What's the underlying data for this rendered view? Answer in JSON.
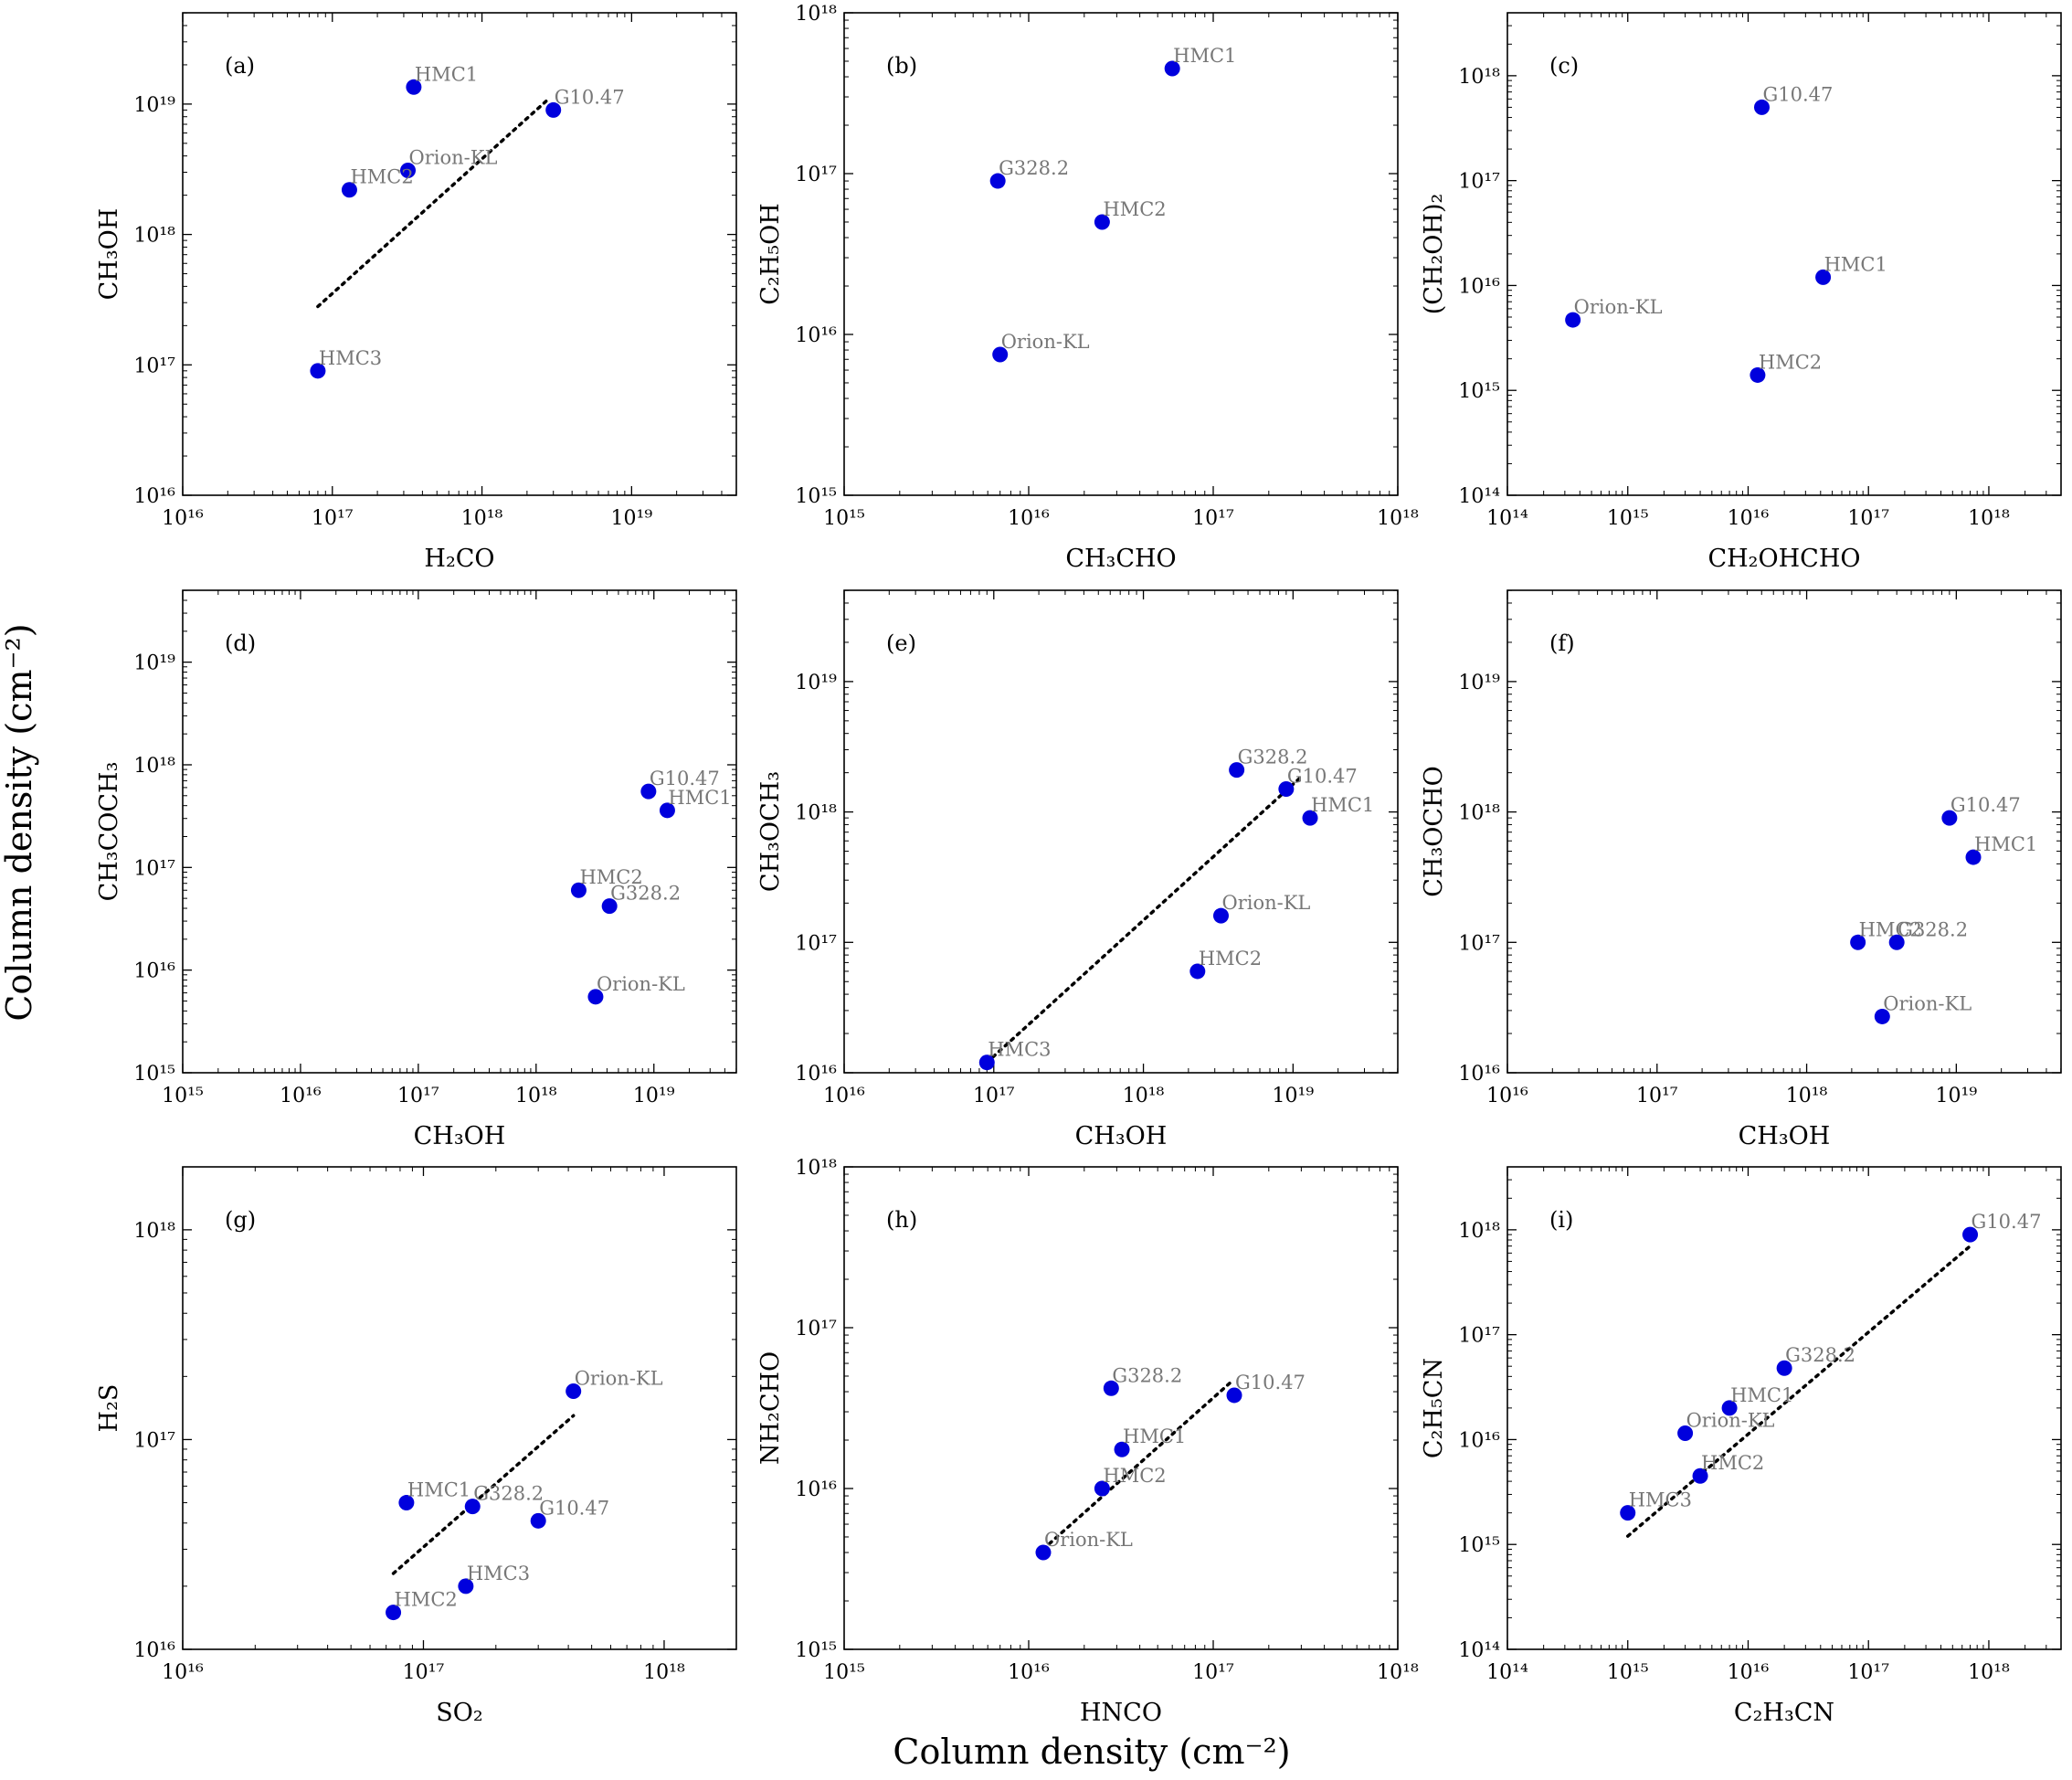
{
  "figure": {
    "global_xlabel": "Column density (cm⁻²)",
    "global_ylabel": "Column density (cm⁻²)"
  },
  "colors": {
    "marker": "#0000dd",
    "point_label": "#777777",
    "fit_line": "#000000"
  },
  "chart_data": [
    {
      "type": "scatter",
      "panel": "(a)",
      "xlabel": "H₂CO",
      "ylabel": "CH₃OH",
      "x_log_range": [
        16,
        19.7
      ],
      "y_log_range": [
        16,
        19.7
      ],
      "x_decades": [
        16,
        17,
        18,
        19
      ],
      "y_decades": [
        16,
        17,
        18,
        19
      ],
      "x_tick_labels": [
        "10¹⁶",
        "10¹⁷",
        "10¹⁸",
        "10¹⁹"
      ],
      "y_tick_labels": [
        "10¹⁶",
        "10¹⁷",
        "10¹⁸",
        "10¹⁹"
      ],
      "points": [
        {
          "label": "HMC1",
          "x": 3.5e+17,
          "y": 1.35e+19
        },
        {
          "label": "G10.47",
          "x": 3e+18,
          "y": 9e+18
        },
        {
          "label": "Orion-KL",
          "x": 3.2e+17,
          "y": 3.1e+18
        },
        {
          "label": "HMC2",
          "x": 1.3e+17,
          "y": 2.2e+18
        },
        {
          "label": "HMC3",
          "x": 8e+16,
          "y": 9e+16
        }
      ],
      "fit": {
        "x": [
          8e+16,
          2.8e+18
        ],
        "y": [
          2.8e+17,
          1.1e+19
        ]
      }
    },
    {
      "type": "scatter",
      "panel": "(b)",
      "xlabel": "CH₃CHO",
      "ylabel": "C₂H₅OH",
      "x_log_range": [
        15,
        18
      ],
      "y_log_range": [
        15,
        18
      ],
      "x_decades": [
        15,
        16,
        17,
        18
      ],
      "y_decades": [
        15,
        16,
        17,
        18
      ],
      "x_tick_labels": [
        "10¹⁵",
        "10¹⁶",
        "10¹⁷",
        "10¹⁸"
      ],
      "y_tick_labels": [
        "10¹⁵",
        "10¹⁶",
        "10¹⁷",
        "10¹⁸"
      ],
      "points": [
        {
          "label": "HMC1",
          "x": 6e+16,
          "y": 4.5e+17
        },
        {
          "label": "G328.2",
          "x": 6800000000000000.0,
          "y": 9e+16
        },
        {
          "label": "HMC2",
          "x": 2.5e+16,
          "y": 5e+16
        },
        {
          "label": "Orion-KL",
          "x": 7000000000000000.0,
          "y": 7500000000000000.0
        }
      ],
      "fit": null
    },
    {
      "type": "scatter",
      "panel": "(c)",
      "xlabel": "CH₂OHCHO",
      "ylabel": "(CH₂OH)₂",
      "x_log_range": [
        14,
        18.6
      ],
      "y_log_range": [
        14,
        18.6
      ],
      "x_decades": [
        14,
        15,
        16,
        17,
        18
      ],
      "y_decades": [
        14,
        15,
        16,
        17,
        18
      ],
      "x_tick_labels": [
        "10¹⁴",
        "10¹⁵",
        "10¹⁶",
        "10¹⁷",
        "10¹⁸"
      ],
      "y_tick_labels": [
        "10¹⁴",
        "10¹⁵",
        "10¹⁶",
        "10¹⁷",
        "10¹⁸"
      ],
      "points": [
        {
          "label": "G10.47",
          "x": 1.3e+16,
          "y": 5e+17
        },
        {
          "label": "HMC1",
          "x": 4.2e+16,
          "y": 1.2e+16
        },
        {
          "label": "Orion-KL",
          "x": 350000000000000.0,
          "y": 4700000000000000.0
        },
        {
          "label": "HMC2",
          "x": 1.2e+16,
          "y": 1400000000000000.0
        }
      ],
      "fit": null
    },
    {
      "type": "scatter",
      "panel": "(d)",
      "xlabel": "CH₃OH",
      "ylabel": "CH₃COCH₃",
      "x_log_range": [
        15,
        19.7
      ],
      "y_log_range": [
        15,
        19.7
      ],
      "x_decades": [
        15,
        16,
        17,
        18,
        19
      ],
      "y_decades": [
        15,
        16,
        17,
        18,
        19
      ],
      "x_tick_labels": [
        "10¹⁵",
        "10¹⁶",
        "10¹⁷",
        "10¹⁸",
        "10¹⁹"
      ],
      "y_tick_labels": [
        "10¹⁵",
        "10¹⁶",
        "10¹⁷",
        "10¹⁸",
        "10¹⁹"
      ],
      "points": [
        {
          "label": "G10.47",
          "x": 9e+18,
          "y": 5.5e+17
        },
        {
          "label": "HMC1",
          "x": 1.3e+19,
          "y": 3.6e+17
        },
        {
          "label": "HMC2",
          "x": 2.3e+18,
          "y": 6e+16
        },
        {
          "label": "G328.2",
          "x": 4.2e+18,
          "y": 4.2e+16
        },
        {
          "label": "Orion-KL",
          "x": 3.2e+18,
          "y": 5500000000000000.0
        }
      ],
      "fit": null
    },
    {
      "type": "scatter",
      "panel": "(e)",
      "xlabel": "CH₃OH",
      "ylabel": "CH₃OCH₃",
      "x_log_range": [
        16,
        19.7
      ],
      "y_log_range": [
        16,
        19.7
      ],
      "x_decades": [
        16,
        17,
        18,
        19
      ],
      "y_decades": [
        16,
        17,
        18,
        19
      ],
      "x_tick_labels": [
        "10¹⁶",
        "10¹⁷",
        "10¹⁸",
        "10¹⁹"
      ],
      "y_tick_labels": [
        "10¹⁶",
        "10¹⁷",
        "10¹⁸",
        "10¹⁹"
      ],
      "points": [
        {
          "label": "G328.2",
          "x": 4.2e+18,
          "y": 2.1e+18
        },
        {
          "label": "G10.47",
          "x": 9e+18,
          "y": 1.5e+18
        },
        {
          "label": "HMC1",
          "x": 1.3e+19,
          "y": 9e+17
        },
        {
          "label": "Orion-KL",
          "x": 3.3e+18,
          "y": 1.6e+17
        },
        {
          "label": "HMC2",
          "x": 2.3e+18,
          "y": 6e+16
        },
        {
          "label": "HMC3",
          "x": 9e+16,
          "y": 1.2e+16
        }
      ],
      "fit": {
        "x": [
          9e+16,
          1.1e+19
        ],
        "y": [
          1.2e+16,
          1.8e+18
        ]
      }
    },
    {
      "type": "scatter",
      "panel": "(f)",
      "xlabel": "CH₃OH",
      "ylabel": "CH₃OCHO",
      "x_log_range": [
        16,
        19.7
      ],
      "y_log_range": [
        16,
        19.7
      ],
      "x_decades": [
        16,
        17,
        18,
        19
      ],
      "y_decades": [
        16,
        17,
        18,
        19
      ],
      "x_tick_labels": [
        "10¹⁶",
        "10¹⁷",
        "10¹⁸",
        "10¹⁹"
      ],
      "y_tick_labels": [
        "10¹⁶",
        "10¹⁷",
        "10¹⁸",
        "10¹⁹"
      ],
      "points": [
        {
          "label": "G10.47",
          "x": 9e+18,
          "y": 9e+17
        },
        {
          "label": "HMC1",
          "x": 1.3e+19,
          "y": 4.5e+17
        },
        {
          "label": "HMC2",
          "x": 2.2e+18,
          "y": 1e+17
        },
        {
          "label": "G328.2",
          "x": 4e+18,
          "y": 1e+17
        },
        {
          "label": "Orion-KL",
          "x": 3.2e+18,
          "y": 2.7e+16
        }
      ],
      "fit": null
    },
    {
      "type": "scatter",
      "panel": "(g)",
      "xlabel": "SO₂",
      "ylabel": "H₂S",
      "x_log_range": [
        16,
        18.3
      ],
      "y_log_range": [
        16,
        18.3
      ],
      "x_decades": [
        16,
        17,
        18
      ],
      "y_decades": [
        16,
        17,
        18
      ],
      "x_tick_labels": [
        "10¹⁶",
        "10¹⁷",
        "10¹⁸"
      ],
      "y_tick_labels": [
        "10¹⁶",
        "10¹⁷",
        "10¹⁸"
      ],
      "points": [
        {
          "label": "Orion-KL",
          "x": 4.2e+17,
          "y": 1.7e+17
        },
        {
          "label": "HMC1",
          "x": 8.5e+16,
          "y": 5e+16
        },
        {
          "label": "G328.2",
          "x": 1.6e+17,
          "y": 4.8e+16
        },
        {
          "label": "G10.47",
          "x": 3e+17,
          "y": 4.1e+16
        },
        {
          "label": "HMC3",
          "x": 1.5e+17,
          "y": 2e+16
        },
        {
          "label": "HMC2",
          "x": 7.5e+16,
          "y": 1.5e+16
        }
      ],
      "fit": {
        "x": [
          7.5e+16,
          4.2e+17
        ],
        "y": [
          2.3e+16,
          1.3e+17
        ]
      }
    },
    {
      "type": "scatter",
      "panel": "(h)",
      "xlabel": "HNCO",
      "ylabel": "NH₂CHO",
      "x_log_range": [
        15,
        18
      ],
      "y_log_range": [
        15,
        18
      ],
      "x_decades": [
        15,
        16,
        17,
        18
      ],
      "y_decades": [
        15,
        16,
        17,
        18
      ],
      "x_tick_labels": [
        "10¹⁵",
        "10¹⁶",
        "10¹⁷",
        "10¹⁸"
      ],
      "y_tick_labels": [
        "10¹⁵",
        "10¹⁶",
        "10¹⁷",
        "10¹⁸"
      ],
      "points": [
        {
          "label": "G328.2",
          "x": 2.8e+16,
          "y": 4.2e+16
        },
        {
          "label": "G10.47",
          "x": 1.3e+17,
          "y": 3.8e+16
        },
        {
          "label": "HMC1",
          "x": 3.2e+16,
          "y": 1.75e+16
        },
        {
          "label": "HMC2",
          "x": 2.5e+16,
          "y": 1e+16
        },
        {
          "label": "Orion-KL",
          "x": 1.2e+16,
          "y": 4000000000000000.0
        }
      ],
      "fit": {
        "x": [
          1.2e+16,
          1.25e+17
        ],
        "y": [
          4200000000000000.0,
          4.6e+16
        ]
      }
    },
    {
      "type": "scatter",
      "panel": "(i)",
      "xlabel": "C₂H₃CN",
      "ylabel": "C₂H₅CN",
      "x_log_range": [
        14,
        18.6
      ],
      "y_log_range": [
        14,
        18.6
      ],
      "x_decades": [
        14,
        15,
        16,
        17,
        18
      ],
      "y_decades": [
        14,
        15,
        16,
        17,
        18
      ],
      "x_tick_labels": [
        "10¹⁴",
        "10¹⁵",
        "10¹⁶",
        "10¹⁷",
        "10¹⁸"
      ],
      "y_tick_labels": [
        "10¹⁴",
        "10¹⁵",
        "10¹⁶",
        "10¹⁷",
        "10¹⁸"
      ],
      "points": [
        {
          "label": "G10.47",
          "x": 7e+17,
          "y": 9e+17
        },
        {
          "label": "G328.2",
          "x": 2e+16,
          "y": 4.8e+16
        },
        {
          "label": "HMC1",
          "x": 7000000000000000.0,
          "y": 2e+16
        },
        {
          "label": "Orion-KL",
          "x": 3000000000000000.0,
          "y": 1.15e+16
        },
        {
          "label": "HMC2",
          "x": 4000000000000000.0,
          "y": 4500000000000000.0
        },
        {
          "label": "HMC3",
          "x": 1000000000000000.0,
          "y": 2000000000000000.0
        }
      ],
      "fit": {
        "x": [
          1000000000000000.0,
          7e+17
        ],
        "y": [
          1200000000000000.0,
          7e+17
        ]
      }
    }
  ]
}
